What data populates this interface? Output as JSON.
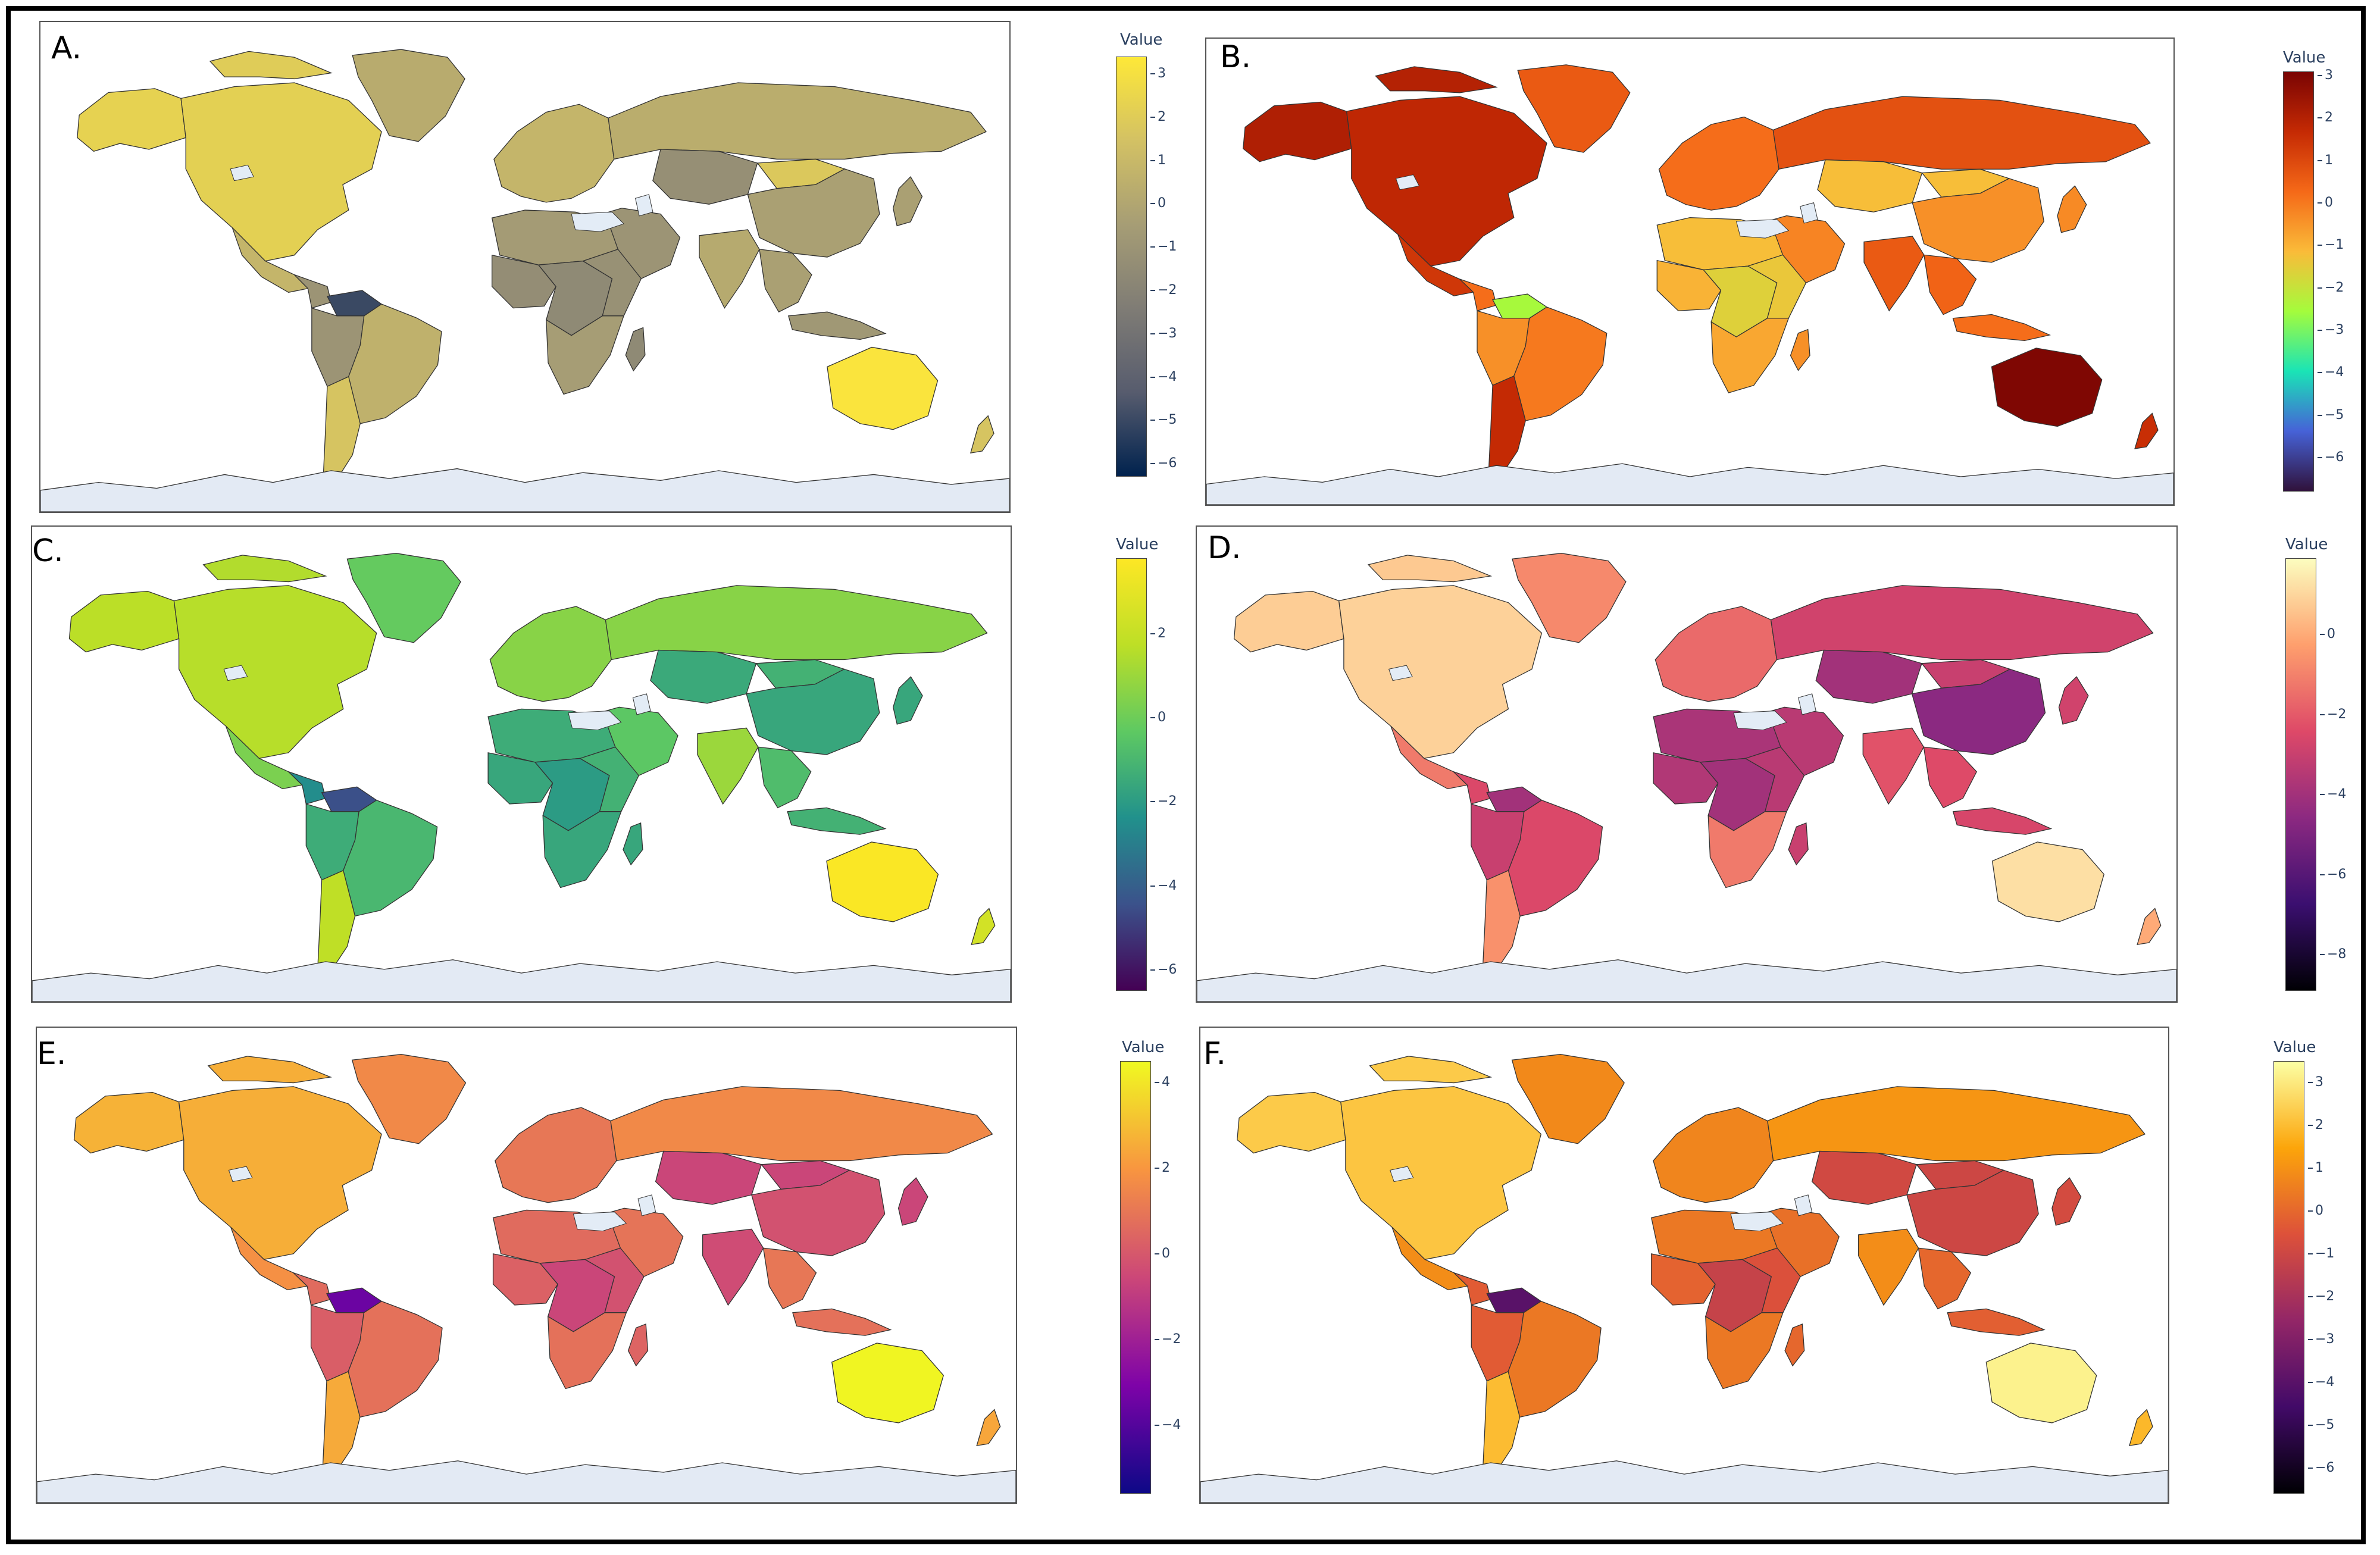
{
  "colorbar_title": "Value",
  "panels": [
    {
      "label": "A.",
      "colorscale": "cividis",
      "stops": [
        "#00224e",
        "#575c6e",
        "#7f7c75",
        "#a69d75",
        "#d3c164",
        "#fee838"
      ],
      "ticks": [
        "3",
        "2",
        "1",
        "0",
        "−1",
        "−2",
        "−3",
        "−4",
        "−5",
        "−6"
      ],
      "range": [
        -6.3,
        3.4
      ]
    },
    {
      "label": "B.",
      "colorscale": "turbo",
      "stops": [
        "#30123b",
        "#4662d7",
        "#1ae4b6",
        "#a4fc3c",
        "#fabb39",
        "#f56918",
        "#c52a04",
        "#7a0403"
      ],
      "ticks": [
        "3",
        "2",
        "1",
        "0",
        "−1",
        "−2",
        "−3",
        "−4",
        "−5",
        "−6"
      ],
      "range": [
        -6.8,
        3.1
      ]
    },
    {
      "label": "C.",
      "colorscale": "viridis",
      "stops": [
        "#440154",
        "#3b528b",
        "#21918c",
        "#5ec962",
        "#bddf26",
        "#fde725"
      ],
      "ticks": [
        "2",
        "0",
        "−2",
        "−4",
        "−6"
      ],
      "range": [
        -6.5,
        3.8
      ]
    },
    {
      "label": "D.",
      "colorscale": "magma",
      "stops": [
        "#000004",
        "#3b0f70",
        "#8c2981",
        "#de4968",
        "#fe9f6d",
        "#fcfdbf"
      ],
      "ticks": [
        "0",
        "−2",
        "−4",
        "−6",
        "−8"
      ],
      "range": [
        -8.9,
        1.9
      ]
    },
    {
      "label": "E.",
      "colorscale": "plasma",
      "stops": [
        "#0d0887",
        "#7e03a8",
        "#cc4778",
        "#f89540",
        "#f0f921"
      ],
      "ticks": [
        "4",
        "2",
        "0",
        "−2",
        "−4"
      ],
      "range": [
        -5.6,
        4.5
      ]
    },
    {
      "label": "F.",
      "colorscale": "inferno",
      "stops": [
        "#000004",
        "#420a68",
        "#932667",
        "#dd513a",
        "#fca50a",
        "#fcffa4"
      ],
      "ticks": [
        "3",
        "2",
        "1",
        "0",
        "−1",
        "−2",
        "−3",
        "−4",
        "−5",
        "−6"
      ],
      "range": [
        -6.6,
        3.5
      ]
    }
  ],
  "regions": {
    "north_america": [
      2.2,
      1.8,
      1.6,
      0.9,
      2.6,
      2.2
    ],
    "alaska": [
      2.3,
      2.1,
      1.7,
      0.8,
      2.7,
      2.3
    ],
    "greenland": [
      0.3,
      0.6,
      -0.2,
      -0.8,
      1.6,
      0.8
    ],
    "canada_islands": [
      2.0,
      2.0,
      1.5,
      0.7,
      2.6,
      2.3
    ],
    "mexico": [
      0.8,
      1.4,
      0.3,
      -1.2,
      1.8,
      0.9
    ],
    "central_america": [
      -1.0,
      0.2,
      -2.5,
      -2.5,
      0.6,
      -0.3
    ],
    "venezuela": [
      -5.0,
      -2.5,
      -4.5,
      -4.0,
      -3.5,
      -4.0
    ],
    "south_america_n": [
      -1.0,
      -0.4,
      -1.4,
      -3.0,
      0.2,
      -0.3
    ],
    "brazil": [
      0.6,
      0.0,
      -1.0,
      -2.5,
      0.8,
      0.4
    ],
    "south_america_s": [
      1.6,
      1.7,
      1.8,
      -0.6,
      2.5,
      2.0
    ],
    "europe": [
      0.8,
      0.2,
      0.6,
      -1.6,
      1.0,
      0.7
    ],
    "russia": [
      0.4,
      0.8,
      0.6,
      -2.8,
      1.6,
      1.1
    ],
    "central_asia": [
      -1.3,
      -1.2,
      -1.5,
      -4.0,
      -0.6,
      -0.9
    ],
    "china": [
      -0.3,
      -0.4,
      -1.6,
      -4.6,
      -0.2,
      -1.0
    ],
    "mongolia": [
      1.8,
      -1.2,
      -1.2,
      -3.0,
      -0.6,
      -1.0
    ],
    "middle_east": [
      -1.0,
      -0.2,
      -0.4,
      -3.4,
      0.9,
      0.2
    ],
    "india": [
      0.2,
      0.6,
      1.0,
      -2.2,
      -0.4,
      0.9
    ],
    "southeast_asia": [
      -0.3,
      0.4,
      -0.8,
      -2.4,
      1.0,
      0.0
    ],
    "japan": [
      -0.3,
      -0.3,
      -1.6,
      -2.8,
      -0.6,
      -0.8
    ],
    "north_africa": [
      -0.6,
      -1.2,
      -1.4,
      -3.8,
      0.6,
      0.4
    ],
    "west_africa": [
      -1.4,
      -1.0,
      -1.6,
      -3.6,
      0.3,
      -0.1
    ],
    "central_africa": [
      -1.6,
      -1.6,
      -2.0,
      -4.0,
      -0.6,
      -1.2
    ],
    "east_africa": [
      -1.2,
      -1.4,
      -1.2,
      -3.4,
      -0.2,
      -0.6
    ],
    "southern_africa": [
      -0.5,
      -0.8,
      -1.6,
      -1.2,
      0.8,
      0.4
    ],
    "madagascar": [
      -1.6,
      -0.4,
      -1.6,
      -3.0,
      0.4,
      0.0
    ],
    "indonesia": [
      -0.8,
      0.2,
      -1.2,
      -2.6,
      0.8,
      -0.2
    ],
    "australia": [
      3.2,
      3.0,
      3.7,
      1.2,
      4.4,
      3.2
    ],
    "new_zealand": [
      1.6,
      1.6,
      2.4,
      0.0,
      2.4,
      1.9
    ]
  }
}
